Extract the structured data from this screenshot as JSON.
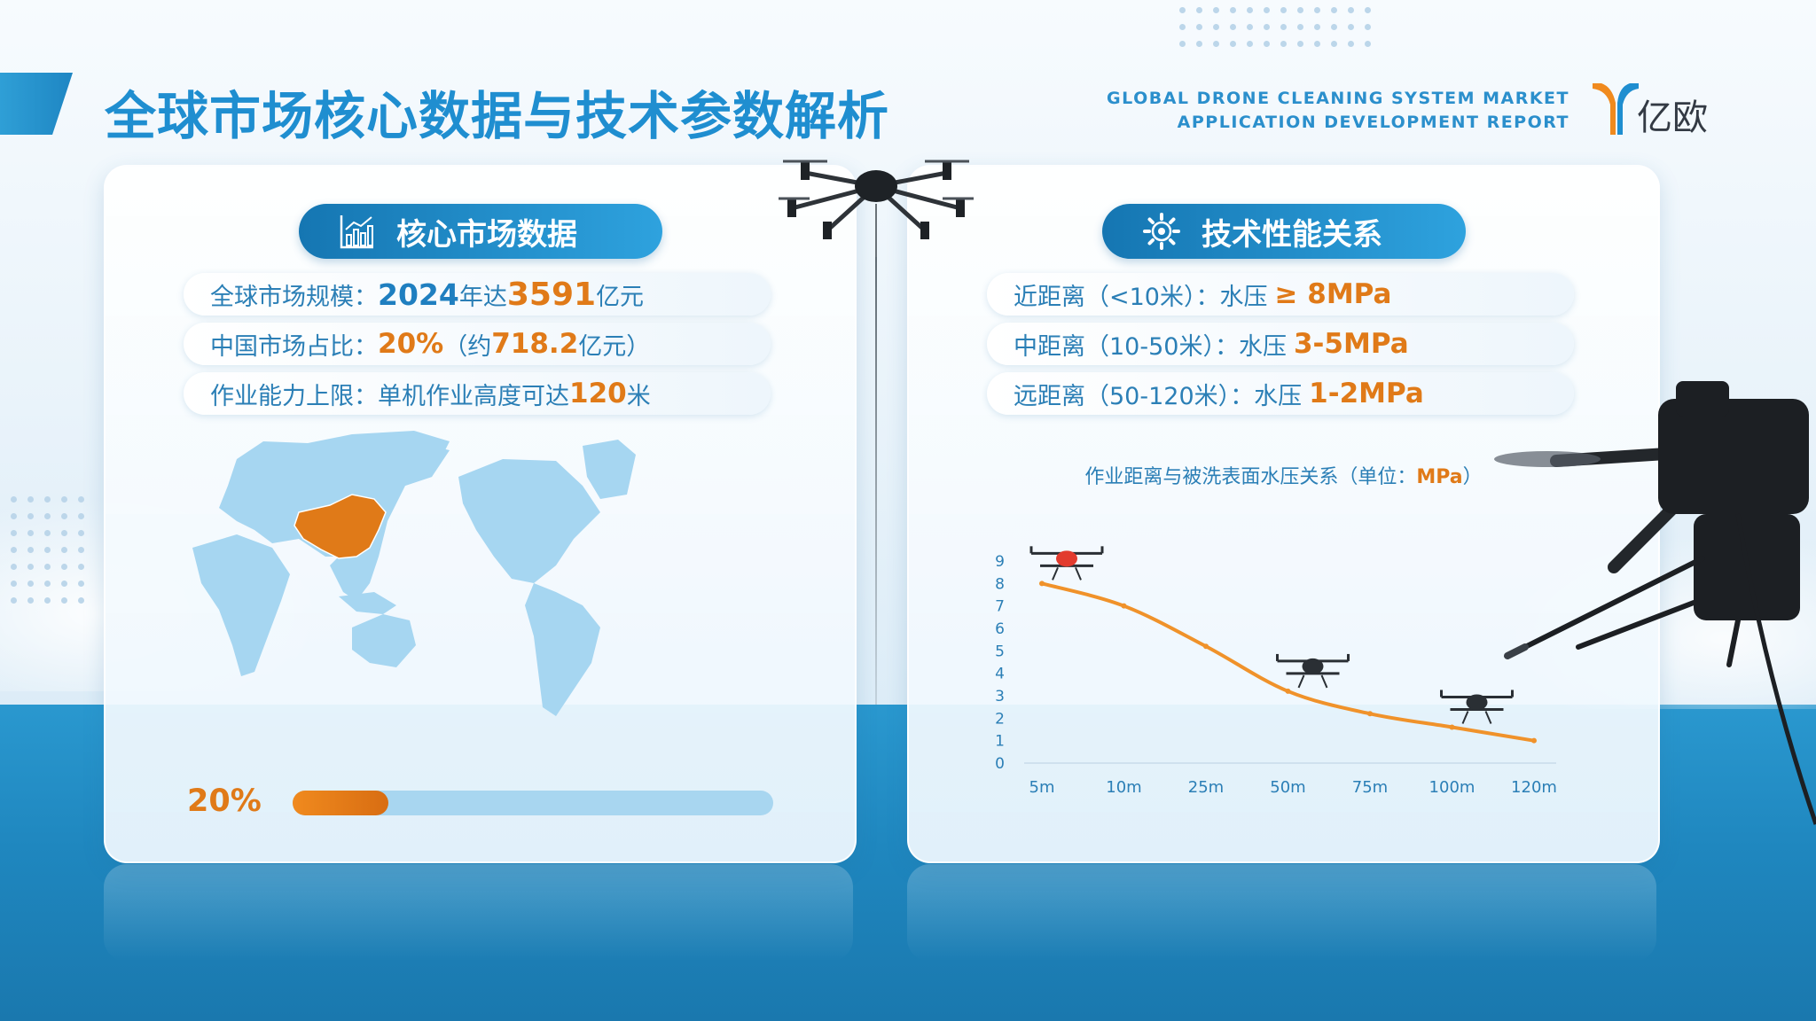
{
  "header": {
    "title": "全球市场核心数据与技术参数解析",
    "report_line1": "GLOBAL DRONE CLEANING SYSTEM MARKET",
    "report_line2": "APPLICATION  DEVELOPMENT REPORT",
    "logo_text": "亿欧"
  },
  "left_panel": {
    "heading": "核心市场数据",
    "heading_icon": "bar-chart-icon",
    "stats": [
      {
        "label": "全球市场规模：",
        "year": "2024",
        "mid": "年达",
        "value": "3591",
        "unit": "亿元"
      },
      {
        "label": "中国市场占比：",
        "value": "20%",
        "paren_open": "（约",
        "value2": "718.2",
        "unit": "亿元）"
      },
      {
        "label": "作业能力上限：单机作业高度可达",
        "value": "120",
        "unit": "米"
      }
    ],
    "map_highlight": "China",
    "share_label": "20%",
    "share_fraction": 0.2
  },
  "right_panel": {
    "heading": "技术性能关系",
    "heading_icon": "gear-icon",
    "specs": [
      {
        "label": "近距离（<10米）：水压",
        "value": "≥ 8MPa"
      },
      {
        "label": "中距离（10-50米）：水压",
        "value": "3-5MPa"
      },
      {
        "label": "远距离（50-120米）：水压",
        "value": "1-2MPa"
      }
    ]
  },
  "chart_data": {
    "type": "line",
    "title": "作业距离与被洗表面水压关系（单位：",
    "title_unit": "MPa",
    "title_close": "）",
    "categories": [
      "5m",
      "10m",
      "25m",
      "50m",
      "75m",
      "100m",
      "120m"
    ],
    "values": [
      8.0,
      7.0,
      5.2,
      3.2,
      2.2,
      1.6,
      1.0
    ],
    "y_ticks": [
      0,
      1,
      2,
      3,
      4,
      5,
      6,
      7,
      8,
      9
    ],
    "ylim": [
      0,
      9
    ],
    "grid": false,
    "line_color": "#f0922a"
  },
  "colors": {
    "primary_blue": "#1f8ed0",
    "accent_orange": "#e07a18",
    "map_blue": "#a6d6f1"
  }
}
